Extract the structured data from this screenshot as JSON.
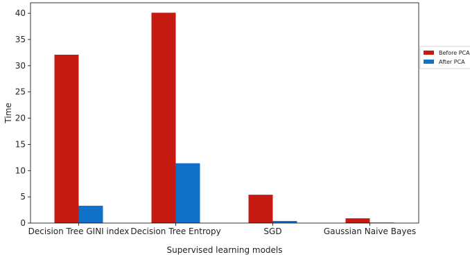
{
  "chart_data": {
    "type": "bar",
    "categories": [
      "Decision Tree GINI index",
      "Decision Tree Entropy",
      "SGD",
      "Gaussian Naive Bayes"
    ],
    "series": [
      {
        "name": "Before PCA",
        "color": "#c41a11",
        "values": [
          32.1,
          40.1,
          5.4,
          0.9
        ]
      },
      {
        "name": "After PCA",
        "color": "#1171c8",
        "values": [
          3.3,
          11.4,
          0.4,
          0.1
        ]
      }
    ],
    "title": "",
    "xlabel": "Supervised learning models",
    "ylabel": "Time",
    "ylim": [
      0,
      42
    ],
    "yticks": [
      0,
      5,
      10,
      15,
      20,
      25,
      30,
      35,
      40
    ],
    "grid": false,
    "legend_placement": "outside-right"
  }
}
